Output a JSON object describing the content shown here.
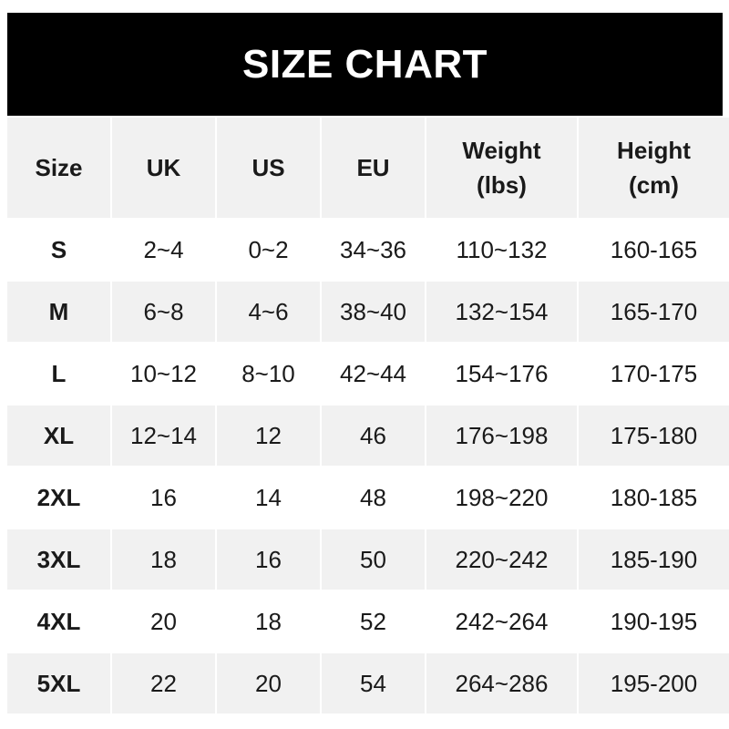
{
  "title": "SIZE CHART",
  "headers": [
    [
      "Size"
    ],
    [
      "UK"
    ],
    [
      "US"
    ],
    [
      "EU"
    ],
    [
      "Weight",
      "(lbs)"
    ],
    [
      "Height",
      "(cm)"
    ]
  ],
  "rows": [
    [
      "S",
      "2~4",
      "0~2",
      "34~36",
      "110~132",
      "160-165"
    ],
    [
      "M",
      "6~8",
      "4~6",
      "38~40",
      "132~154",
      "165-170"
    ],
    [
      "L",
      "10~12",
      "8~10",
      "42~44",
      "154~176",
      "170-175"
    ],
    [
      "XL",
      "12~14",
      "12",
      "46",
      "176~198",
      "175-180"
    ],
    [
      "2XL",
      "16",
      "14",
      "48",
      "198~220",
      "180-185"
    ],
    [
      "3XL",
      "18",
      "16",
      "50",
      "220~242",
      "185-190"
    ],
    [
      "4XL",
      "20",
      "18",
      "52",
      "242~264",
      "190-195"
    ],
    [
      "5XL",
      "22",
      "20",
      "54",
      "264~286",
      "195-200"
    ]
  ]
}
